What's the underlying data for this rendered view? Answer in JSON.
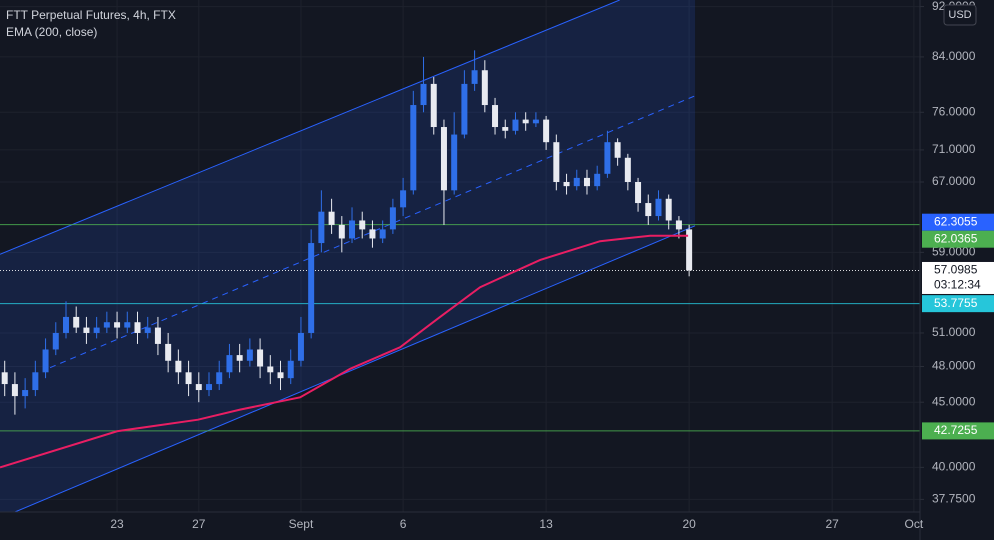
{
  "chart_data": {
    "type": "candlestick",
    "title": "FTT Perpetual Futures, 4h, FTX",
    "currency": "USD",
    "log_scale": true,
    "grid": true,
    "up_color": "#2f6fe8",
    "down_color": "#e8eaf0",
    "x": [
      17.5,
      18,
      18.5,
      19,
      19.5,
      20,
      20.5,
      21,
      21.5,
      22,
      22.5,
      23,
      23.5,
      24,
      24.5,
      25,
      25.5,
      26,
      26.5,
      27,
      27.5,
      28,
      28.5,
      29,
      29.5,
      30,
      30.5,
      31,
      31.5,
      32,
      32.5,
      33,
      33.5,
      34,
      34.5,
      35,
      35.5,
      36,
      36.5,
      37,
      37.5,
      38,
      38.5,
      39,
      39.5,
      40,
      40.5,
      41,
      41.5,
      42,
      42.5,
      43,
      43.5,
      44,
      44.5,
      45,
      45.5,
      46,
      46.5,
      47,
      47.5,
      48,
      48.5,
      49,
      49.5,
      50,
      50.5,
      51
    ],
    "open": [
      47.5,
      46.5,
      45.5,
      46,
      47.5,
      49.5,
      51,
      52.5,
      51.5,
      51,
      51.5,
      52,
      51.5,
      52,
      51,
      51.5,
      50,
      48.5,
      47.5,
      46.5,
      46,
      46.5,
      47.5,
      49,
      48.5,
      49.5,
      48,
      47.5,
      47,
      48.5,
      51,
      60,
      63.5,
      62,
      60.5,
      62.5,
      61.5,
      60.5,
      61.5,
      64,
      66,
      77,
      80,
      74,
      66,
      73,
      80,
      82,
      77,
      74,
      73.5,
      75,
      74.5,
      75,
      72,
      67,
      66.5,
      67.5,
      66.5,
      68,
      72,
      70,
      67,
      64.5,
      63,
      65,
      62.5,
      61.5
    ],
    "high": [
      48.5,
      47.5,
      47,
      48.5,
      50.5,
      52,
      54,
      53.5,
      52.5,
      52.5,
      53,
      53,
      53,
      53,
      52.5,
      52.5,
      51,
      49.5,
      48.5,
      47.5,
      47.5,
      48.5,
      50,
      50,
      50.5,
      50.5,
      49,
      48.5,
      49.5,
      52.5,
      61.5,
      66,
      65,
      63,
      64,
      63.5,
      62.5,
      62.5,
      65,
      67.5,
      79,
      84,
      81,
      75,
      76,
      82,
      85,
      83.5,
      78,
      75,
      76,
      76,
      76,
      75.5,
      73,
      68,
      68.5,
      68.5,
      69,
      73.5,
      72.5,
      70.5,
      67.5,
      65.5,
      66,
      65.5,
      63,
      62
    ],
    "low": [
      45.5,
      44,
      44.5,
      45.5,
      47,
      49,
      50.5,
      51,
      50,
      50.5,
      51,
      50.5,
      51,
      50,
      50.5,
      49,
      47.5,
      46.5,
      45.5,
      45,
      45.5,
      46,
      47,
      47.5,
      48,
      47,
      46.5,
      46,
      46.5,
      48,
      50.5,
      59,
      61,
      59,
      60,
      60.5,
      59.5,
      60,
      61,
      63,
      65.5,
      76,
      73,
      62,
      65.5,
      72.5,
      79,
      76,
      73,
      72.5,
      73,
      73.5,
      74,
      71,
      66,
      65.5,
      66,
      65.5,
      66,
      67.5,
      69,
      66,
      63.5,
      62,
      62.5,
      61.5,
      60.5,
      56.5
    ],
    "close": [
      46.5,
      45.5,
      46,
      47.5,
      49.5,
      51,
      52.5,
      51.5,
      51,
      51.5,
      52,
      51.5,
      52,
      51,
      51.5,
      50,
      48.5,
      47.5,
      46.5,
      46,
      46.5,
      47.5,
      49,
      48.5,
      49.5,
      48,
      47.5,
      47,
      48.5,
      51,
      60,
      63.5,
      62,
      60.5,
      62.5,
      61.5,
      60.5,
      61.5,
      64,
      66,
      77,
      80,
      74,
      66,
      73,
      80,
      82,
      77,
      74,
      73.5,
      75,
      74.5,
      75,
      72,
      67,
      66.5,
      67.5,
      66.5,
      68,
      72,
      70,
      67,
      64.5,
      63,
      65,
      62.5,
      61.5,
      57.1
    ],
    "series": [
      {
        "name": "EMA (200, close)",
        "color": "#e91e63",
        "x": [
          17.27,
          23,
          26.96,
          29.02,
          31.96,
          34.41,
          36.85,
          38.81,
          40.77,
          43.71,
          46.64,
          49.09,
          50.95
        ],
        "values": [
          40,
          42.7,
          43.6,
          44.4,
          45.4,
          47.8,
          49.7,
          52.5,
          55.4,
          58.2,
          60.2,
          60.8,
          60.8
        ]
      }
    ],
    "channel": {
      "color": "#2962ff",
      "upper": {
        "x": [
          17.27,
          47.6
        ],
        "values": [
          58.8,
          93.1
        ]
      },
      "middle": {
        "x": [
          19.72,
          51.29
        ],
        "values": [
          47.9,
          78.3
        ]
      },
      "lower": {
        "x": [
          18.0,
          51.29
        ],
        "values": [
          36.9,
          61.9
        ]
      }
    },
    "price_lines": [
      {
        "value": 62.3055,
        "color": "#2962ff",
        "line": false
      },
      {
        "value": 62.0365,
        "color": "#4caf50",
        "line": true
      },
      {
        "value": 57.0985,
        "color": "#ffffff",
        "line": true
      },
      {
        "value": 53.7755,
        "color": "#26c6da",
        "line": true
      },
      {
        "value": 42.7255,
        "color": "#4caf50",
        "line": true
      }
    ],
    "countdown": "03:12:34",
    "xlim": [
      17.27,
      62.3
    ],
    "xticks": [
      23,
      27,
      {
        "value": 32,
        "label": "Sept"
      },
      {
        "value": 37,
        "label": "6"
      },
      {
        "value": 44,
        "label": "13"
      },
      {
        "value": 51,
        "label": "20"
      },
      {
        "value": 58,
        "label": "27"
      },
      {
        "value": 62,
        "label": "Oct"
      }
    ],
    "ylim": [
      36.9,
      93.1
    ],
    "yticks": [
      {
        "value": 92,
        "label": "92.0000"
      },
      {
        "value": 84,
        "label": "84.0000"
      },
      {
        "value": 76,
        "label": "76.0000"
      },
      {
        "value": 71,
        "label": "71.0000"
      },
      {
        "value": 67,
        "label": "67.0000"
      },
      {
        "value": 59,
        "label": "59.0000"
      },
      {
        "value": 51,
        "label": "51.0000"
      },
      {
        "value": 48,
        "label": "48.0000"
      },
      {
        "value": 45,
        "label": "45.0000"
      },
      {
        "value": 40,
        "label": "40.0000"
      },
      {
        "value": 37.75,
        "label": "37.7500"
      }
    ]
  }
}
